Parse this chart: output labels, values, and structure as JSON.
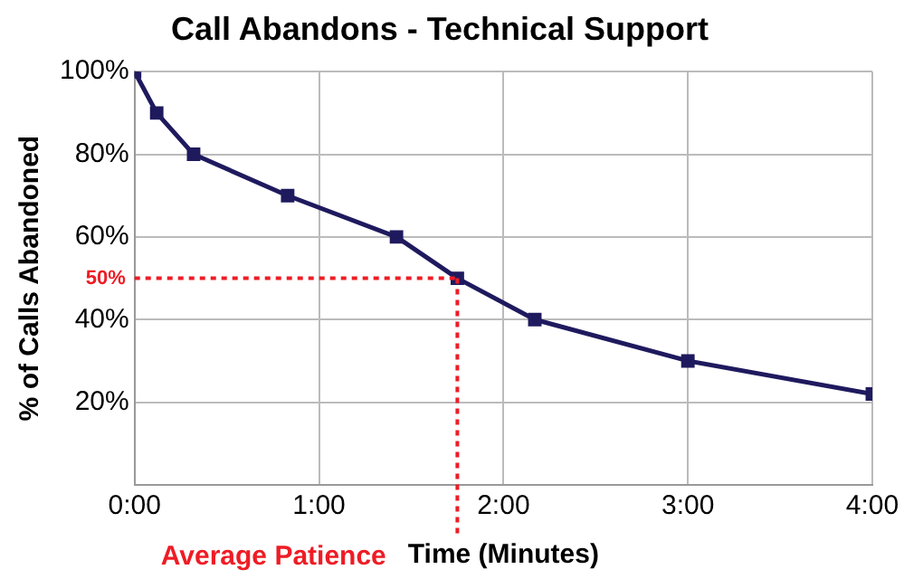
{
  "chart_data": {
    "type": "line",
    "title": "Call Abandons - Technical Support",
    "xlabel": "Time (Minutes)",
    "ylabel": "% of Calls Abandoned",
    "x": [
      0,
      0.12,
      0.32,
      0.83,
      1.42,
      1.75,
      2.17,
      3.0,
      4.0
    ],
    "series": [
      {
        "color": "#1f1a5e",
        "values": [
          100,
          90,
          80,
          70,
          60,
          50,
          40,
          30,
          22
        ]
      }
    ],
    "xlim": [
      0,
      4
    ],
    "xticks": [
      {
        "value": 0,
        "label": "0:00"
      },
      {
        "value": 1,
        "label": "1:00"
      },
      {
        "value": 2,
        "label": "2:00"
      },
      {
        "value": 3,
        "label": "3:00"
      },
      {
        "value": 4,
        "label": "4:00"
      }
    ],
    "ylim": [
      0,
      100
    ],
    "yticks": [
      {
        "value": 0,
        "label": null
      },
      {
        "value": 20,
        "label": "20%"
      },
      {
        "value": 40,
        "label": "40%"
      },
      {
        "value": 60,
        "label": "60%"
      },
      {
        "value": 80,
        "label": "80%"
      },
      {
        "value": 100,
        "label": "100%"
      }
    ],
    "ref_lines": [
      {
        "axis": "y",
        "value": 50,
        "label": "50%",
        "color": "#ee1c25",
        "line_style": "dotted"
      },
      {
        "axis": "x",
        "value": 1.75,
        "label": "Average Patience",
        "color": "#ee1c25",
        "line_style": "dotted"
      }
    ],
    "grid": true,
    "legend": false,
    "marker": "square",
    "line_style": "solid"
  }
}
